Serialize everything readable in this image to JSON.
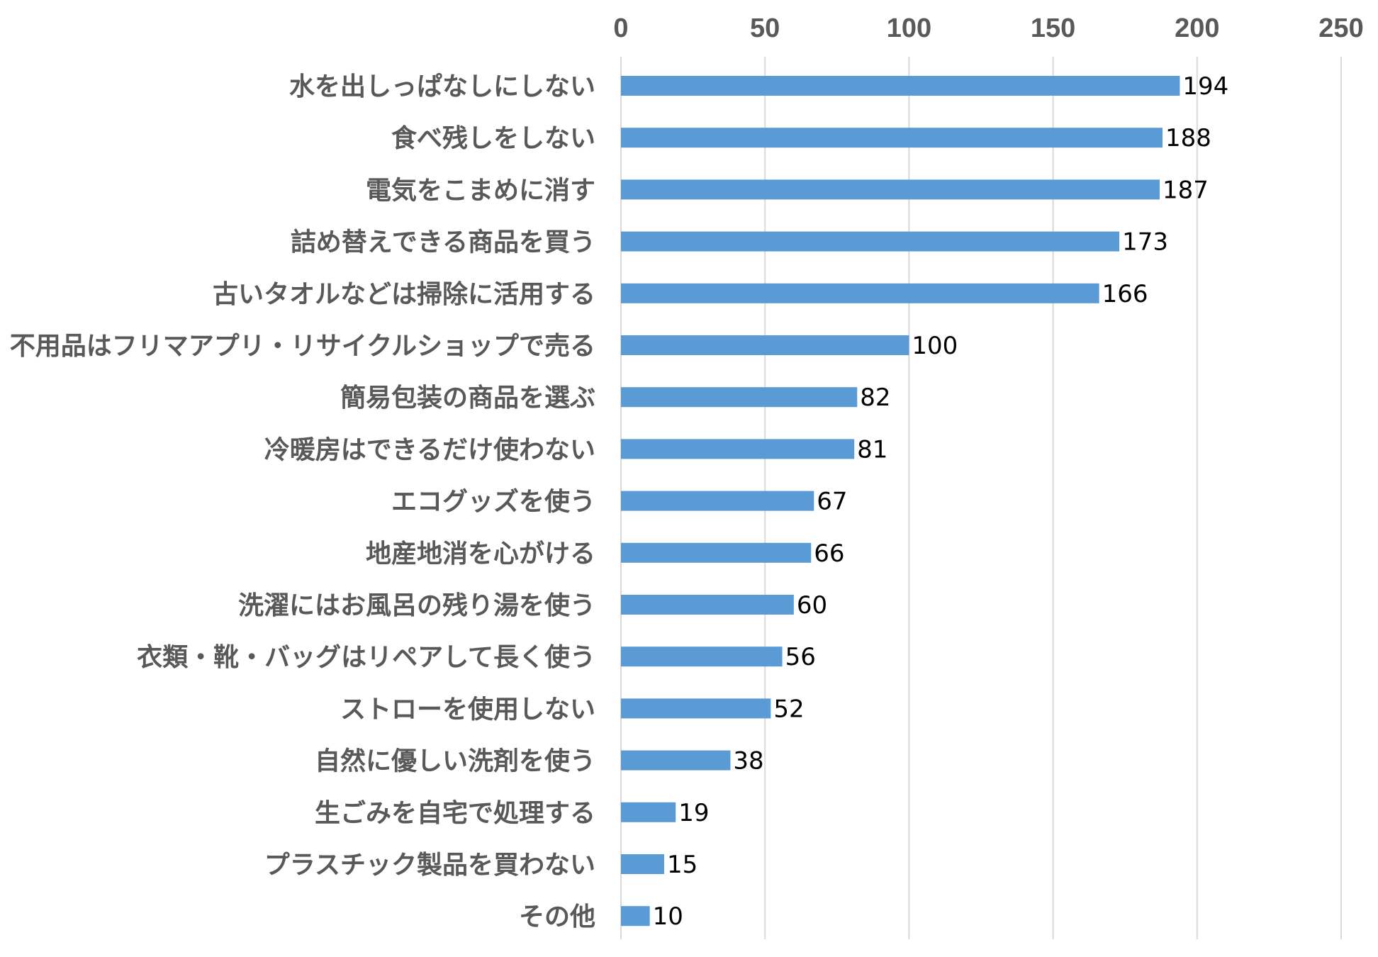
{
  "chart_data": {
    "type": "bar",
    "orientation": "horizontal",
    "title": "",
    "xlabel": "",
    "ylabel": "",
    "xlim": [
      0,
      250
    ],
    "ticks": [
      0,
      50,
      100,
      150,
      200,
      250
    ],
    "axis_position": "top",
    "grid": true,
    "legend": "none",
    "bar_color": "#5b9bd5",
    "categories": [
      "水を出しっぱなしにしない",
      "食べ残しをしない",
      "電気をこまめに消す",
      "詰め替えできる商品を買う",
      "古いタオルなどは掃除に活用する",
      "不用品はフリマアプリ・リサイクルショップで売る",
      "簡易包装の商品を選ぶ",
      "冷暖房はできるだけ使わない",
      "エコグッズを使う",
      "地産地消を心がける",
      "洗濯にはお風呂の残り湯を使う",
      "衣類・靴・バッグはリペアして長く使う",
      "ストローを使用しない",
      "自然に優しい洗剤を使う",
      "生ごみを自宅で処理する",
      "プラスチック製品を買わない",
      "その他"
    ],
    "values": [
      194,
      188,
      187,
      173,
      166,
      100,
      82,
      81,
      67,
      66,
      60,
      56,
      52,
      38,
      19,
      15,
      10
    ]
  }
}
